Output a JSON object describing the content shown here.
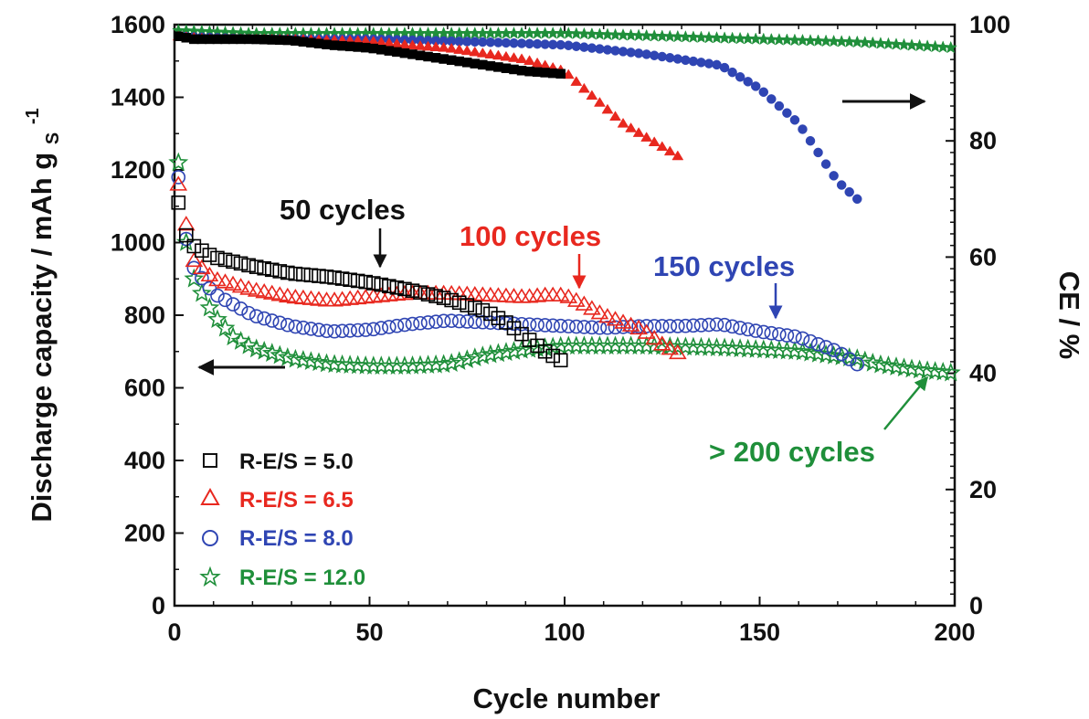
{
  "chart_data": {
    "type": "scatter",
    "xlabel": "Cycle number",
    "ylabel_left": "Discharge capacity / mAh g",
    "ylabel_left_sup": "-1",
    "ylabel_left_sub": "S",
    "ylabel_right": "CE / %",
    "xlim": [
      0,
      200
    ],
    "ylim_left": [
      0,
      1600
    ],
    "ylim_right": [
      0,
      100
    ],
    "x_ticks": [
      "0",
      "50",
      "100",
      "150",
      "200"
    ],
    "y_left_ticks": [
      "0",
      "200",
      "400",
      "600",
      "800",
      "1000",
      "1200",
      "1400",
      "1600"
    ],
    "y_right_ticks": [
      "0",
      "20",
      "40",
      "60",
      "80",
      "100"
    ],
    "grid": false,
    "legend_position": "bottom-left",
    "series": [
      {
        "name": "R-E/S = 5.0",
        "marker": "square",
        "color": "#000000",
        "capacity": [
          [
            1,
            1110
          ],
          [
            2,
            1080
          ],
          [
            3,
            1020
          ],
          [
            5,
            990
          ],
          [
            10,
            960
          ],
          [
            20,
            935
          ],
          [
            30,
            915
          ],
          [
            40,
            905
          ],
          [
            50,
            890
          ],
          [
            60,
            870
          ],
          [
            70,
            845
          ],
          [
            80,
            810
          ],
          [
            85,
            780
          ],
          [
            90,
            740
          ],
          [
            95,
            700
          ],
          [
            100,
            670
          ]
        ],
        "ce": [
          [
            1,
            98
          ],
          [
            5,
            97.5
          ],
          [
            10,
            97.5
          ],
          [
            20,
            97.5
          ],
          [
            30,
            97.3
          ],
          [
            40,
            96.5
          ],
          [
            50,
            96
          ],
          [
            60,
            95
          ],
          [
            70,
            94
          ],
          [
            80,
            93
          ],
          [
            90,
            92
          ],
          [
            100,
            91.5
          ]
        ]
      },
      {
        "name": "R-E/S = 6.5",
        "marker": "triangle",
        "color": "#e8281f",
        "capacity": [
          [
            1,
            1160
          ],
          [
            2,
            1120
          ],
          [
            3,
            1050
          ],
          [
            5,
            950
          ],
          [
            10,
            900
          ],
          [
            20,
            870
          ],
          [
            30,
            850
          ],
          [
            40,
            840
          ],
          [
            50,
            850
          ],
          [
            60,
            860
          ],
          [
            70,
            860
          ],
          [
            80,
            855
          ],
          [
            90,
            850
          ],
          [
            95,
            855
          ],
          [
            100,
            855
          ],
          [
            105,
            830
          ],
          [
            110,
            800
          ],
          [
            115,
            780
          ],
          [
            120,
            760
          ],
          [
            125,
            720
          ],
          [
            130,
            690
          ]
        ],
        "ce": [
          [
            1,
            98
          ],
          [
            10,
            97.5
          ],
          [
            30,
            97.5
          ],
          [
            50,
            97.2
          ],
          [
            60,
            96.5
          ],
          [
            70,
            96
          ],
          [
            80,
            95
          ],
          [
            90,
            94
          ],
          [
            95,
            93
          ],
          [
            100,
            92
          ],
          [
            105,
            89
          ],
          [
            110,
            86
          ],
          [
            115,
            83
          ],
          [
            120,
            81
          ],
          [
            125,
            79
          ],
          [
            130,
            77
          ]
        ]
      },
      {
        "name": "R-E/S = 8.0",
        "marker": "circle",
        "color": "#2f45b3",
        "capacity": [
          [
            1,
            1180
          ],
          [
            2,
            1050
          ],
          [
            5,
            930
          ],
          [
            10,
            860
          ],
          [
            20,
            800
          ],
          [
            30,
            770
          ],
          [
            40,
            755
          ],
          [
            50,
            760
          ],
          [
            60,
            775
          ],
          [
            70,
            785
          ],
          [
            80,
            780
          ],
          [
            90,
            775
          ],
          [
            100,
            770
          ],
          [
            110,
            765
          ],
          [
            120,
            770
          ],
          [
            130,
            770
          ],
          [
            140,
            775
          ],
          [
            150,
            755
          ],
          [
            160,
            740
          ],
          [
            170,
            700
          ],
          [
            175,
            665
          ]
        ],
        "ce": [
          [
            1,
            98
          ],
          [
            20,
            97.5
          ],
          [
            50,
            97.5
          ],
          [
            80,
            97
          ],
          [
            100,
            96.5
          ],
          [
            120,
            95
          ],
          [
            140,
            93
          ],
          [
            150,
            89
          ],
          [
            160,
            83
          ],
          [
            165,
            78
          ],
          [
            170,
            73
          ],
          [
            175,
            70
          ]
        ]
      },
      {
        "name": "R-E/S = 12.0",
        "marker": "star",
        "color": "#1f8f3a",
        "capacity": [
          [
            1,
            1220
          ],
          [
            3,
            1000
          ],
          [
            5,
            900
          ],
          [
            10,
            800
          ],
          [
            15,
            740
          ],
          [
            20,
            710
          ],
          [
            30,
            680
          ],
          [
            40,
            665
          ],
          [
            50,
            660
          ],
          [
            60,
            660
          ],
          [
            70,
            665
          ],
          [
            80,
            690
          ],
          [
            90,
            705
          ],
          [
            100,
            715
          ],
          [
            120,
            715
          ],
          [
            140,
            710
          ],
          [
            160,
            700
          ],
          [
            175,
            680
          ],
          [
            180,
            665
          ],
          [
            190,
            650
          ],
          [
            200,
            640
          ]
        ],
        "ce": [
          [
            1,
            99
          ],
          [
            20,
            98.5
          ],
          [
            50,
            98.5
          ],
          [
            100,
            98.5
          ],
          [
            150,
            97.5
          ],
          [
            175,
            97
          ],
          [
            200,
            96
          ]
        ]
      }
    ],
    "annotations": [
      {
        "text": "50 cycles",
        "color": "#111111"
      },
      {
        "text": "100 cycles",
        "color": "#e8281f"
      },
      {
        "text": "150 cycles",
        "color": "#2f45b3"
      },
      {
        "text": "> 200 cycles",
        "color": "#1f8f3a"
      }
    ]
  }
}
